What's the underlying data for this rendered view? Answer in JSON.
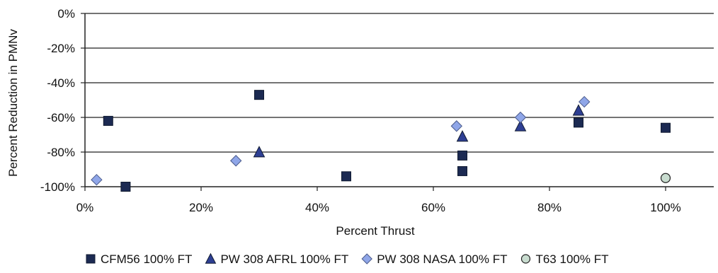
{
  "chart_data": {
    "type": "scatter",
    "title": "",
    "xlabel": "Percent Thrust",
    "ylabel": "Percent Reduction in PMNv",
    "xlim": [
      0,
      1.08
    ],
    "ylim": [
      -1.0,
      0.0
    ],
    "x_ticks": [
      "0%",
      "20%",
      "40%",
      "60%",
      "80%",
      "100%"
    ],
    "x_tick_values": [
      0,
      0.2,
      0.4,
      0.6,
      0.8,
      1.0
    ],
    "y_ticks": [
      "0%",
      "-20%",
      "-40%",
      "-60%",
      "-80%",
      "-100%"
    ],
    "y_tick_values": [
      0,
      -0.2,
      -0.4,
      -0.6,
      -0.8,
      -1.0
    ],
    "grid": "horizontal",
    "legend_position": "bottom",
    "series": [
      {
        "name": "CFM56 100% FT",
        "marker": "square",
        "color": "#1c2a52",
        "points": [
          {
            "x": 0.04,
            "y": -0.62
          },
          {
            "x": 0.07,
            "y": -1.0
          },
          {
            "x": 0.3,
            "y": -0.47
          },
          {
            "x": 0.45,
            "y": -0.94
          },
          {
            "x": 0.65,
            "y": -0.82
          },
          {
            "x": 0.65,
            "y": -0.91
          },
          {
            "x": 0.85,
            "y": -0.63
          },
          {
            "x": 1.0,
            "y": -0.66
          }
        ]
      },
      {
        "name": "PW 308 AFRL 100% FT",
        "marker": "triangle",
        "color": "#2e3f93",
        "points": [
          {
            "x": 0.3,
            "y": -0.8
          },
          {
            "x": 0.65,
            "y": -0.71
          },
          {
            "x": 0.75,
            "y": -0.65
          },
          {
            "x": 0.85,
            "y": -0.56
          }
        ]
      },
      {
        "name": "PW 308 NASA 100% FT",
        "marker": "diamond",
        "color": "#8fa6e8",
        "points": [
          {
            "x": 0.02,
            "y": -0.96
          },
          {
            "x": 0.26,
            "y": -0.85
          },
          {
            "x": 0.64,
            "y": -0.65
          },
          {
            "x": 0.75,
            "y": -0.6
          },
          {
            "x": 0.86,
            "y": -0.51
          }
        ]
      },
      {
        "name": "T63 100% FT",
        "marker": "circle",
        "color": "#c8dccf",
        "points": [
          {
            "x": 1.0,
            "y": -0.95
          }
        ]
      }
    ]
  }
}
